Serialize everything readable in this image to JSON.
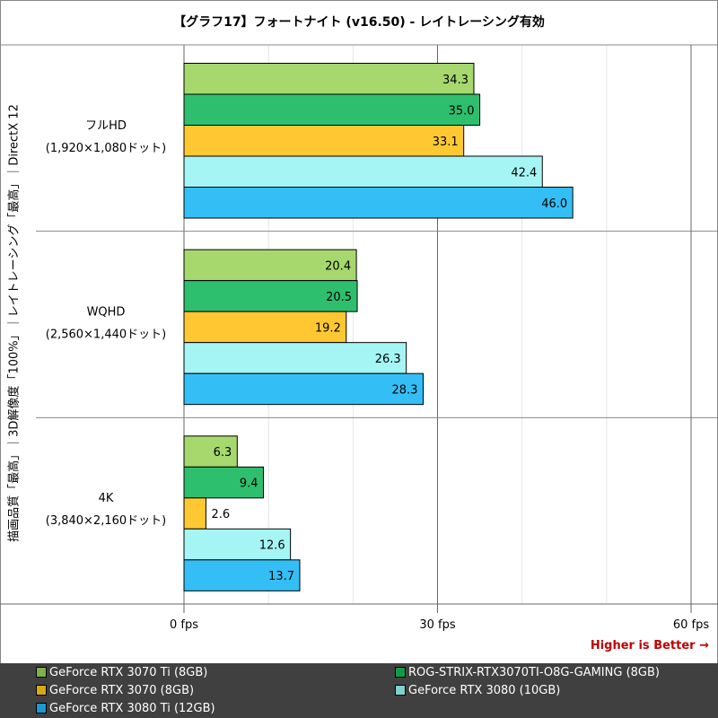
{
  "chart_data": {
    "type": "bar",
    "orientation": "horizontal",
    "title": "【グラフ17】フォートナイト (v16.50) - レイトレーシング有効",
    "ylabel": "描画品質「最高」｜3D解像度「100%」｜レイトレーシング「最高」｜DirectX 12",
    "categories": [
      {
        "name": "フルHD",
        "sub": "(1,920×1,080ドット)"
      },
      {
        "name": "WQHD",
        "sub": "(2,560×1,440ドット)"
      },
      {
        "name": "4K",
        "sub": "(3,840×2,160ドット)"
      }
    ],
    "series": [
      {
        "name": "GeForce RTX 3070 Ti (8GB)",
        "color": "#a6d86e",
        "legend_color": "#7fb04a",
        "values": [
          34.3,
          20.4,
          6.3
        ]
      },
      {
        "name": "ROG-STRIX-RTX3070TI-O8G-GAMING (8GB)",
        "color": "#2ebf6e",
        "legend_color": "#109a48",
        "values": [
          35.0,
          20.5,
          9.4
        ]
      },
      {
        "name": "GeForce RTX 3070 (8GB)",
        "color": "#ffc832",
        "legend_color": "#d8a818",
        "values": [
          33.1,
          19.2,
          2.6
        ]
      },
      {
        "name": "GeForce RTX 3080 (10GB)",
        "color": "#a6f5f5",
        "legend_color": "#80d0d0",
        "values": [
          42.4,
          26.3,
          12.6
        ]
      },
      {
        "name": "GeForce RTX 3080 Ti (12GB)",
        "color": "#33bff5",
        "legend_color": "#1a9ad0",
        "values": [
          46.0,
          28.3,
          13.7
        ]
      }
    ],
    "xlim": [
      0,
      60
    ],
    "xticks": [
      {
        "v": 0,
        "label": "0 fps"
      },
      {
        "v": 30,
        "label": "30 fps"
      },
      {
        "v": 60,
        "label": "60 fps"
      }
    ],
    "minor_grid": [
      10,
      20,
      40,
      50
    ],
    "grid": true,
    "legend_placement": "bottom",
    "annotation": "Higher is Better →",
    "annotation_color": "#c00000"
  }
}
